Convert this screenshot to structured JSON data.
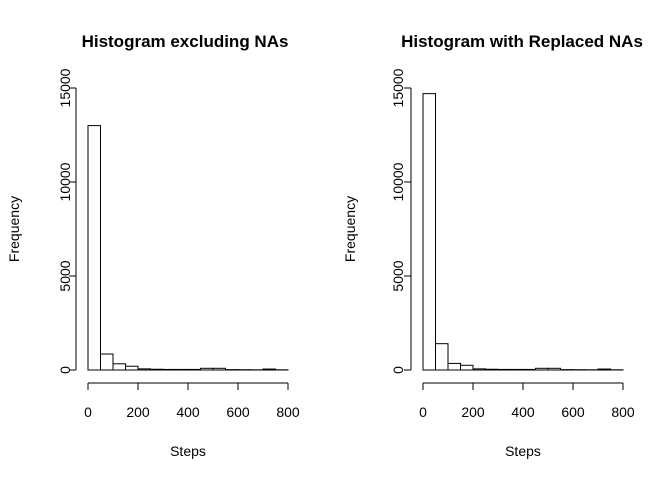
{
  "chart_data": [
    {
      "type": "bar",
      "title": "Histogram excluding NAs",
      "xlabel": "Steps",
      "ylabel": "Frequency",
      "bin_edges": [
        0,
        50,
        100,
        150,
        200,
        250,
        300,
        350,
        400,
        450,
        500,
        550,
        600,
        650,
        700,
        750,
        800
      ],
      "values": [
        13000,
        850,
        330,
        200,
        60,
        40,
        30,
        30,
        30,
        90,
        90,
        20,
        15,
        10,
        50,
        10
      ],
      "xlim": [
        0,
        800
      ],
      "ylim": [
        0,
        15000
      ],
      "xticks": [
        0,
        200,
        400,
        600,
        800
      ],
      "yticks": [
        0,
        5000,
        10000,
        15000
      ],
      "grid": false,
      "legend": "none"
    },
    {
      "type": "bar",
      "title": "Histogram with Replaced NAs",
      "xlabel": "Steps",
      "ylabel": "Frequency",
      "bin_edges": [
        0,
        50,
        100,
        150,
        200,
        250,
        300,
        350,
        400,
        450,
        500,
        550,
        600,
        650,
        700,
        750,
        800
      ],
      "values": [
        14700,
        1400,
        350,
        250,
        60,
        40,
        30,
        30,
        30,
        90,
        90,
        20,
        15,
        10,
        50,
        10
      ],
      "xlim": [
        0,
        800
      ],
      "ylim": [
        0,
        15000
      ],
      "xticks": [
        0,
        200,
        400,
        600,
        800
      ],
      "yticks": [
        0,
        5000,
        10000,
        15000
      ],
      "grid": false,
      "legend": "none"
    }
  ]
}
